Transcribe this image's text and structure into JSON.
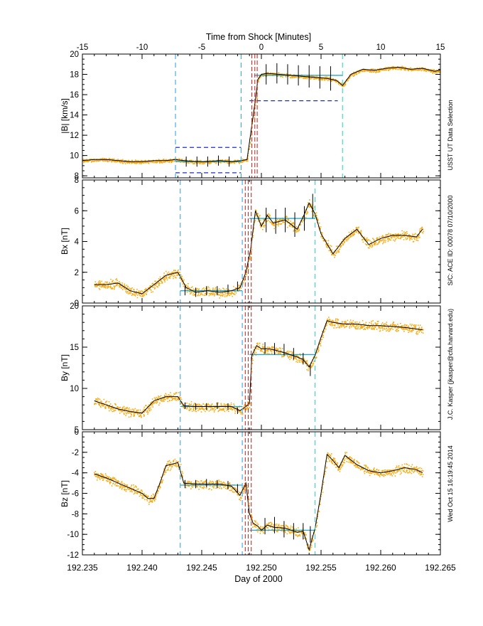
{
  "colors": {
    "points": "#f5ac16",
    "fit": "#000000",
    "interval_marker": "#3aa7ea",
    "interval_marker_alt": "#36d6c4",
    "shock_marker": "#c0322b",
    "level_line": "#2aa6c8",
    "threshold": "#1a2fd0",
    "axis": "#000000"
  },
  "top_axis": {
    "label": "Time from Shock [Minutes]",
    "range": [
      -15,
      15
    ],
    "ticks": [
      "-15",
      "-10",
      "-5",
      "0",
      "5",
      "10",
      "15"
    ]
  },
  "bottom_axis": {
    "label": "Day of 2000",
    "range": [
      192.235,
      192.265
    ],
    "ticks": [
      "192.235",
      "192.240",
      "192.245",
      "192.250",
      "192.255",
      "192.260",
      "192.265"
    ]
  },
  "side_texts": {
    "upper": "USST UT Data Selection",
    "middle": "S/C: ACE ID: 00078 07/10/2000",
    "lower": "J.C. Kasper (jkasper@cfa.harvard.edu)",
    "bottom": "Wed Oct 15 16:19:45 2014"
  },
  "chart_data": [
    {
      "type": "scatter",
      "panel": "B",
      "ylabel": "|B| [km/s]",
      "ylim": [
        7.8,
        20
      ],
      "yticks": [
        "8",
        "10",
        "12",
        "14",
        "16",
        "18",
        "20"
      ],
      "markers": {
        "interval_lines": [
          -7.2,
          -1.7,
          6.8
        ],
        "shock_lines": [
          -0.8,
          -0.55,
          -0.35
        ],
        "thresholds": [
          {
            "from": -7.2,
            "to": -1.7,
            "value": 8.3
          },
          {
            "from": -7.2,
            "to": -1.7,
            "value": 10.8
          },
          {
            "from": -1.0,
            "to": 6.4,
            "value": 15.4
          }
        ],
        "levels": [
          {
            "from": -7.2,
            "to": -1.7,
            "value": 9.4
          },
          {
            "from": -0.6,
            "to": 6.8,
            "value": 17.9
          }
        ]
      },
      "fit": {
        "x": [
          -15,
          -14,
          -13,
          -12,
          -11,
          -10,
          -9,
          -8,
          -7.2,
          -6.5,
          -5.5,
          -4.5,
          -3.5,
          -2.5,
          -1.7,
          -1.2,
          -0.8,
          -0.5,
          -0.3,
          0,
          0.5,
          1.5,
          2.5,
          3.5,
          4.5,
          5.5,
          6.3,
          6.8,
          7.5,
          8.5,
          9.5,
          10.5,
          11.5,
          12.5,
          13.5,
          14.5,
          15
        ],
        "y": [
          9.5,
          9.6,
          9.6,
          9.5,
          9.4,
          9.4,
          9.5,
          9.5,
          9.6,
          9.5,
          9.4,
          9.4,
          9.5,
          9.4,
          9.5,
          9.6,
          13.0,
          15.5,
          17.5,
          18.0,
          18.1,
          18.0,
          17.9,
          17.8,
          17.7,
          17.6,
          17.4,
          16.9,
          18.0,
          18.5,
          18.4,
          18.6,
          18.7,
          18.5,
          18.6,
          18.3,
          18.4
        ]
      },
      "error_bars": {
        "x": [
          -6.3,
          -5.4,
          -4.5,
          -3.6,
          -2.7,
          0.4,
          1.3,
          2.2,
          3.1,
          4.0,
          4.9,
          5.8
        ],
        "y": [
          9.4,
          9.4,
          9.4,
          9.5,
          9.4,
          18.0,
          18.1,
          18.0,
          17.9,
          17.8,
          17.7,
          17.6
        ],
        "err": [
          0.5,
          0.5,
          0.5,
          0.5,
          0.5,
          1.0,
          1.0,
          1.0,
          1.0,
          1.1,
          1.1,
          1.2
        ]
      }
    },
    {
      "type": "scatter",
      "panel": "Bx",
      "ylabel": "Bx [nT]",
      "ylim": [
        0,
        8
      ],
      "yticks": [
        "0",
        "2",
        "4",
        "6",
        "8"
      ],
      "markers": {
        "interval_lines": [
          -6.8,
          -1.6
        ],
        "shock_lines": [
          -1.35,
          -1.1,
          -0.85
        ],
        "end_line": 4.5,
        "levels": [
          {
            "from": -6.8,
            "to": -1.6,
            "value": 0.8
          },
          {
            "from": -1.0,
            "to": 4.5,
            "value": 5.5
          }
        ]
      },
      "fit": {
        "x": [
          -14,
          -13,
          -12,
          -11,
          -10,
          -9,
          -8,
          -7,
          -6.3,
          -5.5,
          -4.5,
          -3.5,
          -2.5,
          -1.8,
          -1.3,
          -0.9,
          -0.5,
          0,
          0.5,
          1,
          2,
          3,
          3.5,
          4,
          4.5,
          5,
          6,
          7,
          8,
          9,
          10,
          11,
          12,
          13,
          13.5
        ],
        "y": [
          1.2,
          1.2,
          1.3,
          0.8,
          0.6,
          1.2,
          1.8,
          2.0,
          1.0,
          0.7,
          0.8,
          0.7,
          0.8,
          1.0,
          2.0,
          3.5,
          6.0,
          5.0,
          5.7,
          5.2,
          5.4,
          4.8,
          5.6,
          6.5,
          5.8,
          4.5,
          3.2,
          4.2,
          4.8,
          3.8,
          4.2,
          4.4,
          4.4,
          4.3,
          4.8
        ]
      },
      "error_bars": {
        "x": [
          -6.4,
          -5.5,
          -4.6,
          -3.7,
          -2.8,
          -2.0,
          0.4,
          1.2,
          2.0,
          2.8,
          3.6,
          4.3
        ],
        "y": [
          0.8,
          0.7,
          0.8,
          0.8,
          0.9,
          1.1,
          5.4,
          5.3,
          5.4,
          5.1,
          5.5,
          6.3
        ],
        "err": [
          0.3,
          0.3,
          0.3,
          0.3,
          0.3,
          0.3,
          0.8,
          0.8,
          0.8,
          0.8,
          0.8,
          0.8
        ]
      }
    },
    {
      "type": "scatter",
      "panel": "By",
      "ylabel": "By [nT]",
      "ylim": [
        5,
        20
      ],
      "yticks": [
        "5",
        "10",
        "15",
        "20"
      ],
      "markers": {
        "interval_lines": [
          -6.8,
          -1.6
        ],
        "shock_lines": [
          -1.35,
          -1.1,
          -0.85
        ],
        "end_line": 4.5,
        "levels": [
          {
            "from": -6.8,
            "to": -1.6,
            "value": 7.8
          },
          {
            "from": -1.0,
            "to": 4.5,
            "value": 14.1
          }
        ]
      },
      "fit": {
        "x": [
          -14,
          -13,
          -12,
          -11,
          -10,
          -9,
          -8,
          -7,
          -6.5,
          -5.5,
          -4.5,
          -3.5,
          -2.5,
          -1.8,
          -1.3,
          -1.0,
          -0.8,
          -0.4,
          0,
          0.5,
          1,
          2,
          3,
          3.5,
          4,
          4.5,
          5,
          5.5,
          6,
          7,
          8,
          9,
          10,
          11,
          12,
          13,
          13.5
        ],
        "y": [
          8.5,
          8.0,
          7.5,
          7.2,
          7.0,
          8.5,
          9.0,
          9.0,
          7.9,
          7.8,
          7.8,
          7.8,
          7.8,
          7.3,
          7.8,
          8.2,
          14.0,
          15.2,
          14.8,
          14.8,
          14.7,
          14.3,
          13.8,
          13.5,
          12.6,
          14.0,
          16.2,
          18.2,
          18.0,
          17.8,
          17.8,
          17.6,
          17.6,
          17.5,
          17.4,
          17.2,
          17.1
        ]
      },
      "error_bars": {
        "x": [
          -6.4,
          -5.5,
          -4.6,
          -3.7,
          -2.8,
          -2.0,
          0.3,
          1.1,
          1.9,
          2.7,
          3.5,
          4.1
        ],
        "y": [
          7.9,
          7.8,
          7.8,
          7.9,
          7.8,
          7.3,
          14.9,
          14.8,
          14.7,
          14.2,
          13.6,
          12.2
        ],
        "err": [
          0.4,
          0.4,
          0.4,
          0.4,
          0.4,
          0.4,
          0.7,
          0.7,
          0.7,
          0.7,
          0.7,
          0.7
        ]
      }
    },
    {
      "type": "scatter",
      "panel": "Bz",
      "ylabel": "Bz [nT]",
      "ylim": [
        -12,
        0
      ],
      "yticks": [
        "-12",
        "-10",
        "-8",
        "-6",
        "-4",
        "-2",
        "0"
      ],
      "markers": {
        "interval_lines": [
          -6.8,
          -1.6
        ],
        "shock_lines": [
          -1.35,
          -1.1,
          -0.85
        ],
        "end_line": 4.5,
        "levels": [
          {
            "from": -6.8,
            "to": -1.6,
            "value": -5.2
          },
          {
            "from": -1.0,
            "to": 4.5,
            "value": -9.6
          }
        ]
      },
      "fit": {
        "x": [
          -14,
          -13,
          -12,
          -11,
          -10,
          -9.5,
          -9,
          -8.5,
          -8,
          -7,
          -6.5,
          -5.5,
          -4.5,
          -3.5,
          -2.5,
          -1.8,
          -1.3,
          -1.0,
          -0.7,
          -0.3,
          0,
          0.5,
          1,
          2,
          3,
          3.5,
          4,
          4.5,
          5,
          5.5,
          6,
          6.5,
          7,
          8,
          9,
          10,
          11,
          12,
          13,
          13.5
        ],
        "y": [
          -4.1,
          -4.5,
          -5.0,
          -5.5,
          -6.0,
          -6.5,
          -6.5,
          -5.0,
          -3.3,
          -3.0,
          -5.0,
          -5.1,
          -5.1,
          -5.1,
          -5.3,
          -6.2,
          -5.0,
          -8.0,
          -8.9,
          -9.2,
          -9.6,
          -9.1,
          -9.3,
          -9.4,
          -9.8,
          -9.7,
          -11.5,
          -9.4,
          -6.0,
          -2.2,
          -2.8,
          -3.5,
          -2.3,
          -3.2,
          -3.8,
          -4.0,
          -3.8,
          -3.5,
          -3.7,
          -4.0
        ]
      },
      "error_bars": {
        "x": [
          -6.4,
          -5.5,
          -4.6,
          -3.7,
          -2.8,
          -2.0,
          0.3,
          1.1,
          1.9,
          2.7,
          3.5,
          4.1
        ],
        "y": [
          -5.1,
          -5.1,
          -5.0,
          -5.1,
          -5.2,
          -5.5,
          -9.2,
          -9.1,
          -9.5,
          -9.7,
          -9.7,
          -10.0
        ],
        "err": [
          0.4,
          0.4,
          0.4,
          0.4,
          0.4,
          0.4,
          0.8,
          0.8,
          0.8,
          0.8,
          0.8,
          0.8
        ]
      }
    }
  ]
}
